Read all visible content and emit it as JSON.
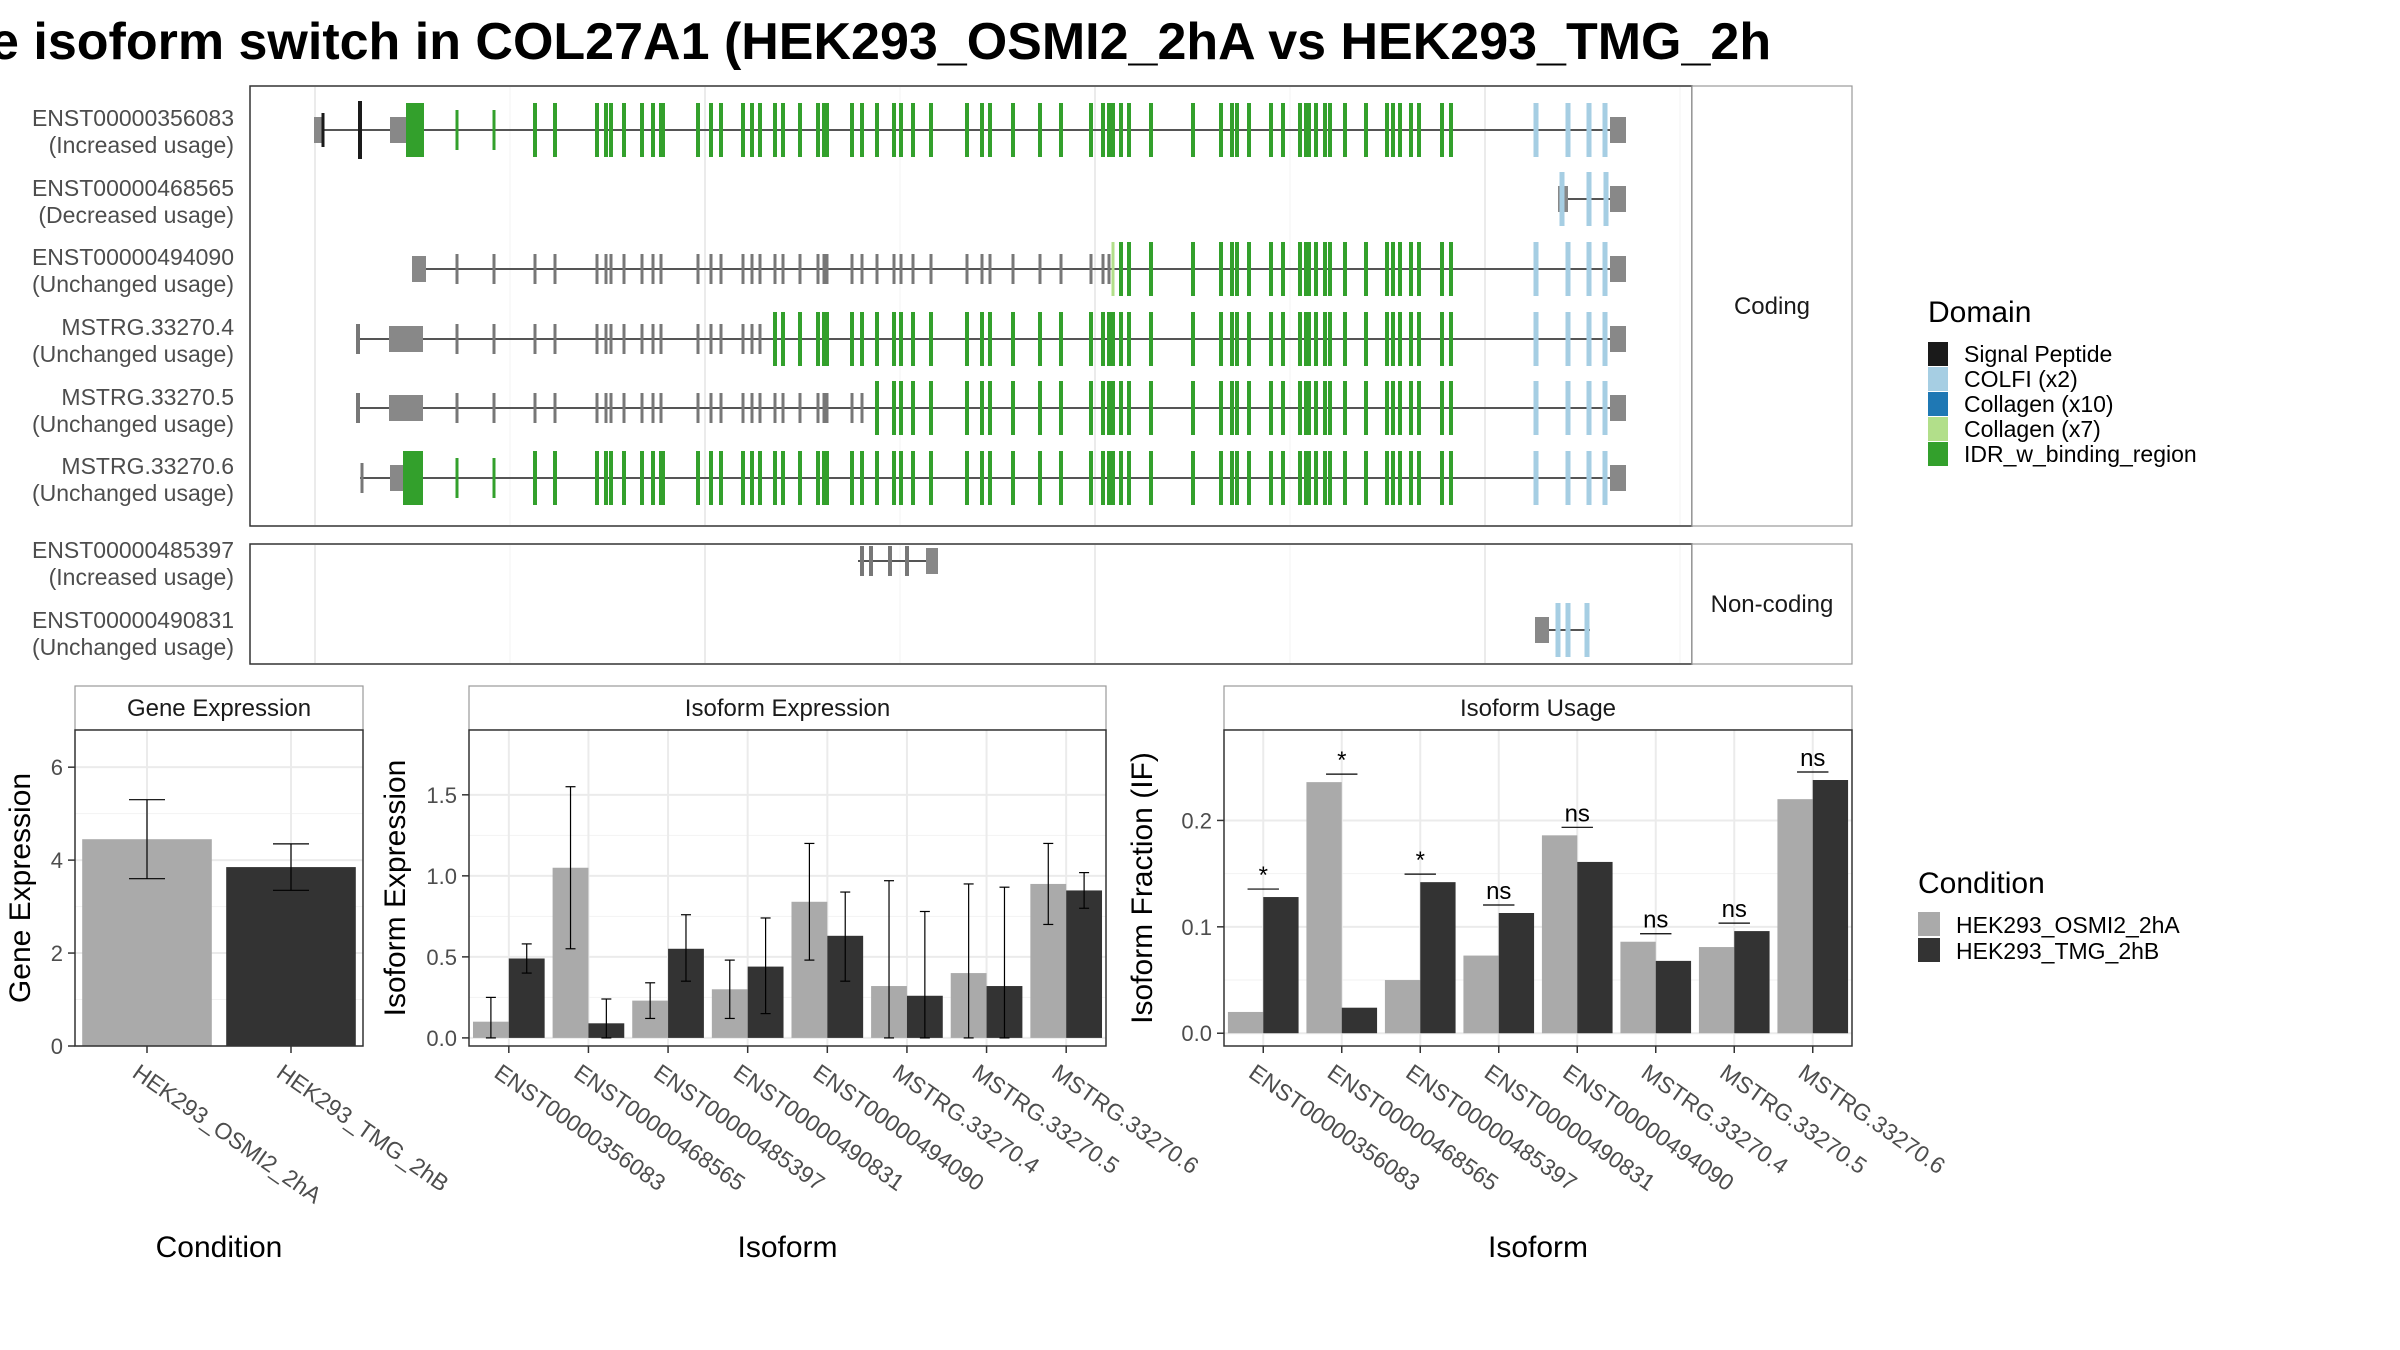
{
  "title": "e isoform switch in COL27A1 (HEK293_OSMI2_2hA vs HEK293_TMG_2h",
  "colors": {
    "signal_peptide": "#1a1a1a",
    "colfi": "#a6cee3",
    "collagen_x10": "#1f78b4",
    "collagen_x7": "#b2df8a",
    "idr": "#33a02c",
    "utr": "#888888",
    "osmi": "#aaaaaa",
    "tmg": "#333333"
  },
  "structure": {
    "panels": [
      {
        "label": "Coding",
        "isoforms": [
          {
            "id": "ENST00000356083",
            "usage": "(Increased usage)"
          },
          {
            "id": "ENST00000468565",
            "usage": "(Decreased usage)"
          },
          {
            "id": "ENST00000494090",
            "usage": "(Unchanged usage)"
          },
          {
            "id": "MSTRG.33270.4",
            "usage": "(Unchanged usage)"
          },
          {
            "id": "MSTRG.33270.5",
            "usage": "(Unchanged usage)"
          },
          {
            "id": "MSTRG.33270.6",
            "usage": "(Unchanged usage)"
          }
        ]
      },
      {
        "label": "Non-coding",
        "isoforms": [
          {
            "id": "ENST00000485397",
            "usage": "(Increased usage)"
          },
          {
            "id": "ENST00000490831",
            "usage": "(Unchanged usage)"
          }
        ]
      }
    ]
  },
  "legend_domain": {
    "title": "Domain",
    "items": [
      {
        "label": "Signal Peptide",
        "color": "#1a1a1a"
      },
      {
        "label": "COLFI (x2)",
        "color": "#a6cee3"
      },
      {
        "label": "Collagen (x10)",
        "color": "#1f78b4"
      },
      {
        "label": "Collagen (x7)",
        "color": "#b2df8a"
      },
      {
        "label": "IDR_w_binding_region",
        "color": "#33a02c"
      }
    ]
  },
  "legend_condition": {
    "title": "Condition",
    "items": [
      {
        "label": "HEK293_OSMI2_2hA",
        "color": "#aaaaaa"
      },
      {
        "label": "HEK293_TMG_2hB",
        "color": "#333333"
      }
    ]
  },
  "chart_data": [
    {
      "type": "bar",
      "title": "Gene Expression",
      "xlabel": "Condition",
      "ylabel": "Gene Expression",
      "ylim": [
        0,
        6.8
      ],
      "yticks": [
        0,
        2,
        4,
        6
      ],
      "categories": [
        "HEK293_OSMI2_2hA",
        "HEK293_TMG_2hB"
      ],
      "values": [
        4.45,
        3.85
      ],
      "err_low": [
        3.6,
        3.35
      ],
      "err_high": [
        5.3,
        4.35
      ]
    },
    {
      "type": "bar",
      "title": "Isoform Expression",
      "xlabel": "Isoform",
      "ylabel": "Isoform Expression",
      "ylim": [
        -0.05,
        1.9
      ],
      "yticks": [
        0.0,
        0.5,
        1.0,
        1.5
      ],
      "categories": [
        "ENST00000356083",
        "ENST00000468565",
        "ENST00000485397",
        "ENST00000490831",
        "ENST00000494090",
        "MSTRG.33270.4",
        "MSTRG.33270.5",
        "MSTRG.33270.6"
      ],
      "series": [
        {
          "name": "HEK293_OSMI2_2hA",
          "values": [
            0.1,
            1.05,
            0.23,
            0.3,
            0.84,
            0.32,
            0.4,
            0.95
          ],
          "err_low": [
            0.0,
            0.55,
            0.12,
            0.12,
            0.48,
            0.0,
            0.0,
            0.7
          ],
          "err_high": [
            0.25,
            1.55,
            0.34,
            0.48,
            1.2,
            0.97,
            0.95,
            1.2
          ]
        },
        {
          "name": "HEK293_TMG_2hB",
          "values": [
            0.49,
            0.09,
            0.55,
            0.44,
            0.63,
            0.26,
            0.32,
            0.91
          ],
          "err_low": [
            0.4,
            0.0,
            0.35,
            0.15,
            0.35,
            0.0,
            0.0,
            0.8
          ],
          "err_high": [
            0.58,
            0.24,
            0.76,
            0.74,
            0.9,
            0.78,
            0.93,
            1.02
          ]
        }
      ]
    },
    {
      "type": "bar",
      "title": "Isoform Usage",
      "xlabel": "Isoform",
      "ylabel": "Isoform Fraction (IF)",
      "ylim": [
        -0.012,
        0.285
      ],
      "yticks": [
        0.0,
        0.1,
        0.2
      ],
      "categories": [
        "ENST00000356083",
        "ENST00000468565",
        "ENST00000485397",
        "ENST00000490831",
        "ENST00000494090",
        "MSTRG.33270.4",
        "MSTRG.33270.5",
        "MSTRG.33270.6"
      ],
      "series": [
        {
          "name": "HEK293_OSMI2_2hA",
          "values": [
            0.02,
            0.236,
            0.05,
            0.073,
            0.186,
            0.086,
            0.081,
            0.22
          ]
        },
        {
          "name": "HEK293_TMG_2hB",
          "values": [
            0.128,
            0.024,
            0.142,
            0.113,
            0.161,
            0.068,
            0.096,
            0.238
          ]
        }
      ],
      "significance": [
        "*",
        "*",
        "*",
        "ns",
        "ns",
        "ns",
        "ns",
        "ns"
      ]
    }
  ]
}
